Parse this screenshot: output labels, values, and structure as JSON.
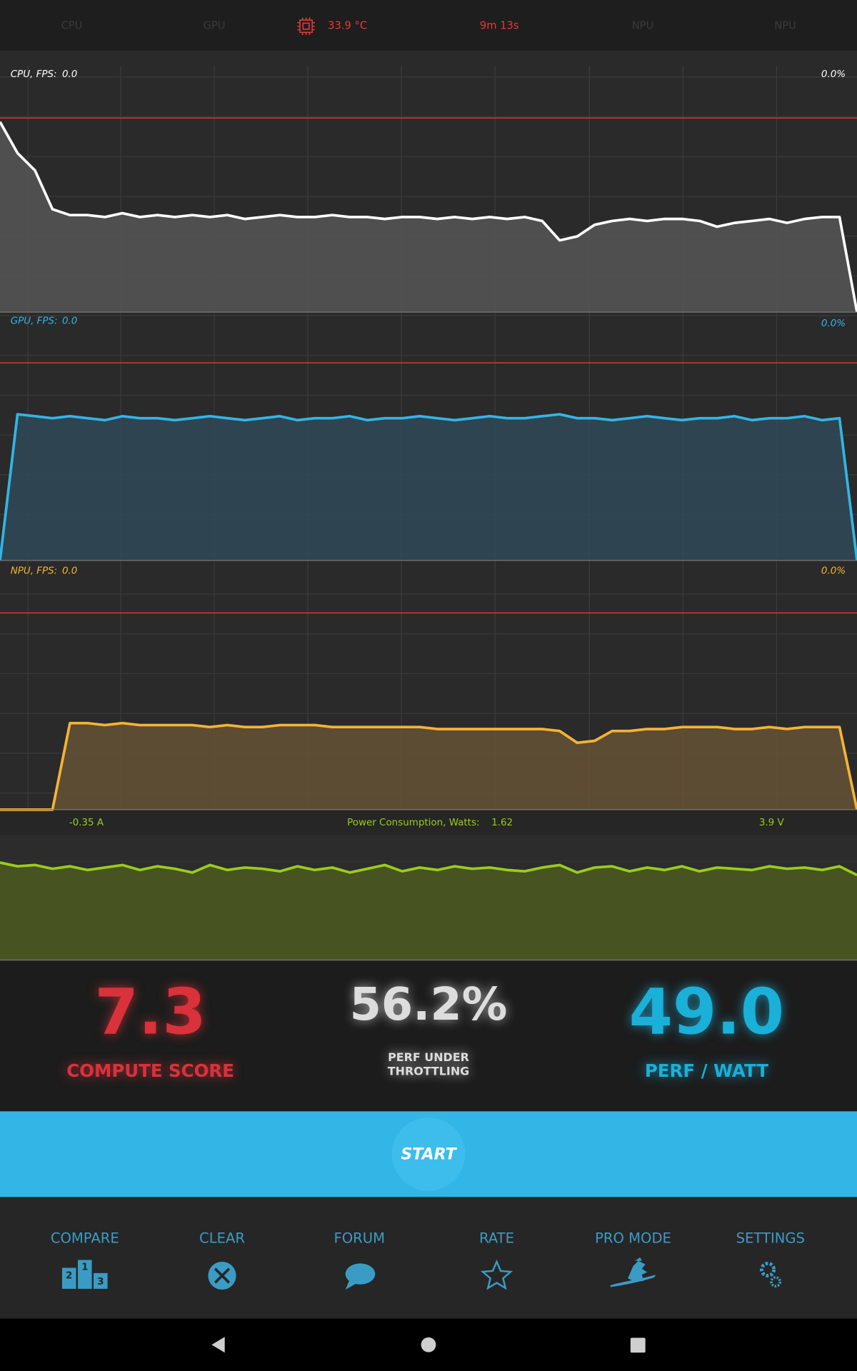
{
  "status_bar": {
    "cpu": "CPU",
    "gpu": "GPU",
    "temperature": "33.9 °C",
    "elapsed": "9m 13s",
    "npu": "NPU",
    "npu_2": "NPU"
  },
  "charts": [
    {
      "label": "CPU, FPS:",
      "fps": "0.0",
      "percent": "0.0%",
      "color": "#ffffff",
      "fill": "#565656",
      "label_color": "#ffffff",
      "ylim": [
        0,
        100
      ],
      "values": [
        98,
        82,
        73,
        53,
        50,
        50,
        49,
        51,
        49,
        50,
        49,
        50,
        49,
        50,
        48,
        49,
        50,
        49,
        49,
        50,
        49,
        49,
        48,
        49,
        49,
        48,
        49,
        48,
        49,
        48,
        49,
        47,
        37,
        39,
        45,
        47,
        48,
        47,
        48,
        48,
        47,
        44,
        46,
        47,
        48,
        46,
        48,
        49,
        49,
        0
      ]
    },
    {
      "label": "GPU, FPS:",
      "fps": "0.0",
      "percent": "0.0%",
      "color": "#33b5e5",
      "fill": "#2f4a58",
      "label_color": "#33b5e5",
      "ylim": [
        0,
        100
      ],
      "values": [
        0,
        74,
        73,
        72,
        73,
        72,
        71,
        73,
        72,
        72,
        71,
        72,
        73,
        72,
        71,
        72,
        73,
        71,
        72,
        72,
        73,
        71,
        72,
        72,
        73,
        72,
        71,
        72,
        73,
        72,
        72,
        73,
        74,
        72,
        72,
        71,
        72,
        73,
        72,
        71,
        72,
        72,
        73,
        71,
        72,
        72,
        73,
        71,
        72,
        0
      ]
    },
    {
      "label": "NPU, FPS:",
      "fps": "0.0",
      "percent": "0.0%",
      "color": "#f5b335",
      "fill": "#665236",
      "label_color": "#f5b335",
      "ylim": [
        0,
        100
      ],
      "values": [
        0,
        0,
        0,
        0,
        44,
        44,
        43,
        44,
        43,
        43,
        43,
        43,
        42,
        43,
        42,
        42,
        43,
        43,
        43,
        42,
        42,
        42,
        42,
        42,
        42,
        41,
        41,
        41,
        41,
        41,
        41,
        41,
        40,
        34,
        35,
        40,
        40,
        41,
        41,
        42,
        42,
        42,
        41,
        41,
        42,
        41,
        42,
        42,
        42,
        0
      ]
    },
    {
      "left": "-0.35 A",
      "label": "Power Consumption, Watts:",
      "watts": "1.62",
      "right": "3.9 V",
      "color": "#9acd1a",
      "fill": "#4c5a1f",
      "ylim": [
        0,
        100
      ],
      "values": [
        78,
        75,
        76,
        73,
        75,
        72,
        74,
        76,
        72,
        75,
        73,
        70,
        76,
        72,
        74,
        73,
        71,
        75,
        72,
        74,
        70,
        73,
        76,
        71,
        74,
        72,
        75,
        73,
        74,
        72,
        71,
        74,
        76,
        70,
        74,
        75,
        71,
        74,
        72,
        75,
        71,
        74,
        73,
        72,
        75,
        73,
        74,
        72,
        75,
        68
      ]
    }
  ],
  "scores": [
    {
      "value": "7.3",
      "label": "COMPUTE SCORE"
    },
    {
      "value": "56.2%",
      "label_lines": [
        "PERF UNDER",
        "THROTTLING"
      ]
    },
    {
      "value": "49.0",
      "label": "PERF / WATT"
    }
  ],
  "start_button": "START",
  "nav": [
    "COMPARE",
    "CLEAR",
    "FORUM",
    "RATE",
    "PRO MODE",
    "SETTINGS"
  ]
}
